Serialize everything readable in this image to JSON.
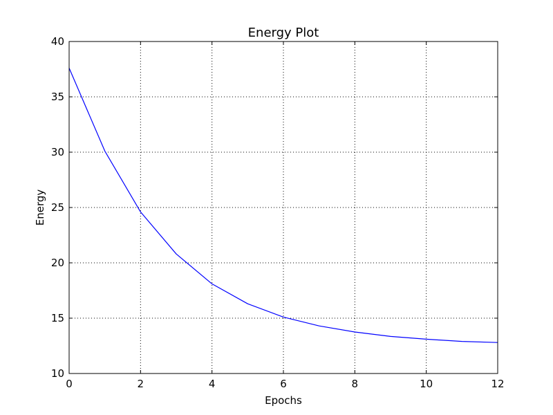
{
  "chart_data": {
    "type": "line",
    "title": "Energy Plot",
    "xlabel": "Epochs",
    "ylabel": "Energy",
    "xlim": [
      0,
      12
    ],
    "ylim": [
      10,
      40
    ],
    "xticks": [
      0,
      2,
      4,
      6,
      8,
      10,
      12
    ],
    "yticks": [
      10,
      15,
      20,
      25,
      30,
      35,
      40
    ],
    "grid": true,
    "series": [
      {
        "color": "#0000ff",
        "x": [
          0,
          1,
          2,
          3,
          4,
          5,
          6,
          7,
          8,
          9,
          10,
          11,
          12
        ],
        "y": [
          37.6,
          30.1,
          24.6,
          20.8,
          18.1,
          16.3,
          15.1,
          14.3,
          13.75,
          13.35,
          13.1,
          12.9,
          12.8
        ]
      }
    ]
  }
}
